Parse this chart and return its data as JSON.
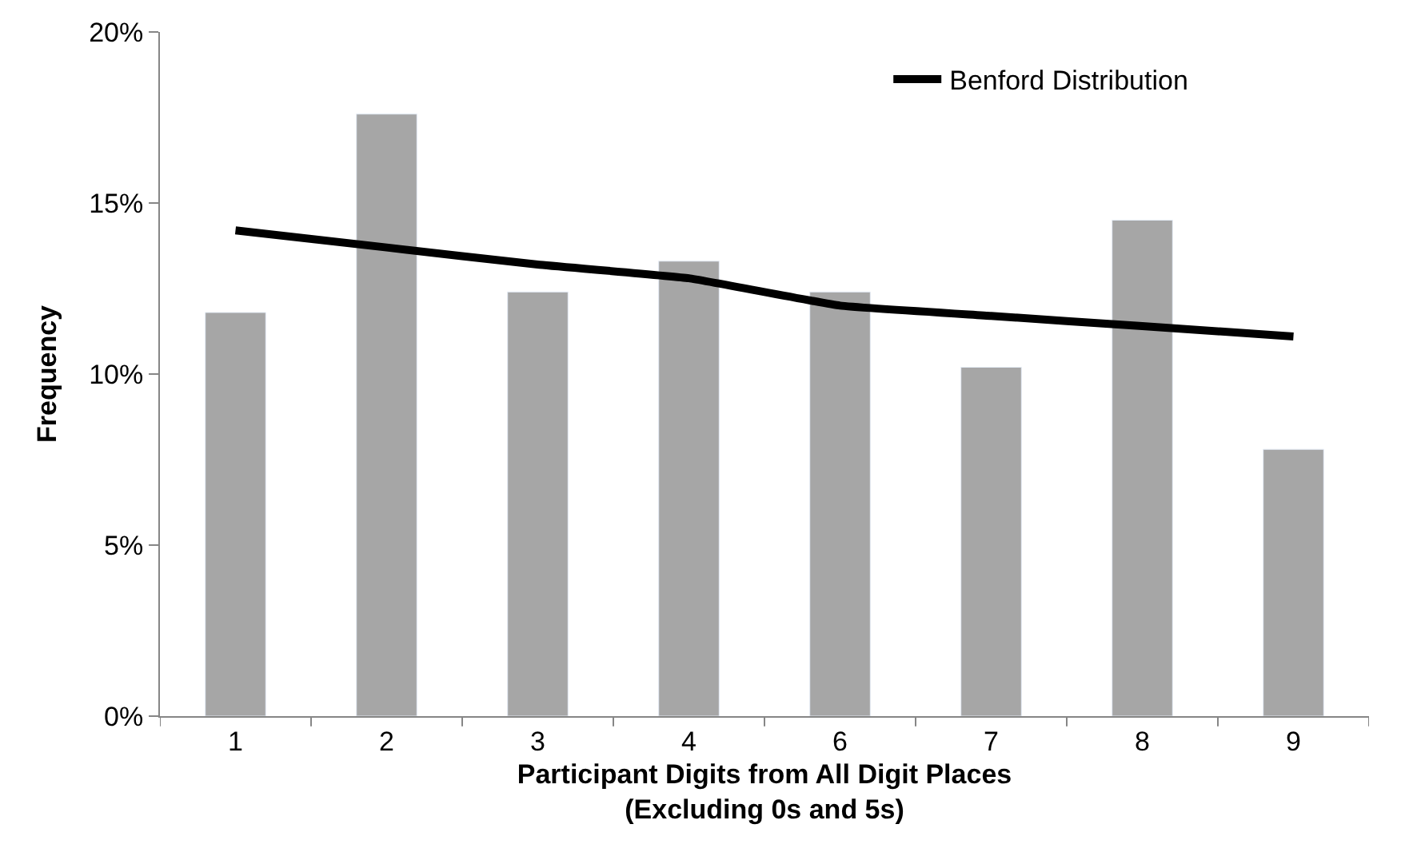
{
  "chart_data": {
    "type": "bar",
    "xlabel": "Participant Digits from All Digit Places\n(Excluding 0s and 5s)",
    "ylabel": "Frequency",
    "categories": [
      "1",
      "2",
      "3",
      "4",
      "6",
      "7",
      "8",
      "9"
    ],
    "series": [
      {
        "color": "#a6a6a6",
        "values": [
          11.8,
          17.6,
          12.4,
          13.3,
          12.4,
          10.2,
          14.5,
          7.8
        ]
      },
      {
        "type": "line",
        "name": "Benford Distribution",
        "color": "#000000",
        "values": [
          14.2,
          13.7,
          13.2,
          12.8,
          12.0,
          11.7,
          11.4,
          11.1
        ]
      }
    ],
    "ylim": [
      0,
      20
    ],
    "yticks": [
      {
        "value": 0,
        "label": "0%"
      },
      {
        "value": 5,
        "label": "5%"
      },
      {
        "value": 10,
        "label": "10%"
      },
      {
        "value": 15,
        "label": "15%"
      },
      {
        "value": 20,
        "label": "20%"
      }
    ],
    "legend": "top right",
    "marker": "none",
    "line_style": "solid"
  }
}
